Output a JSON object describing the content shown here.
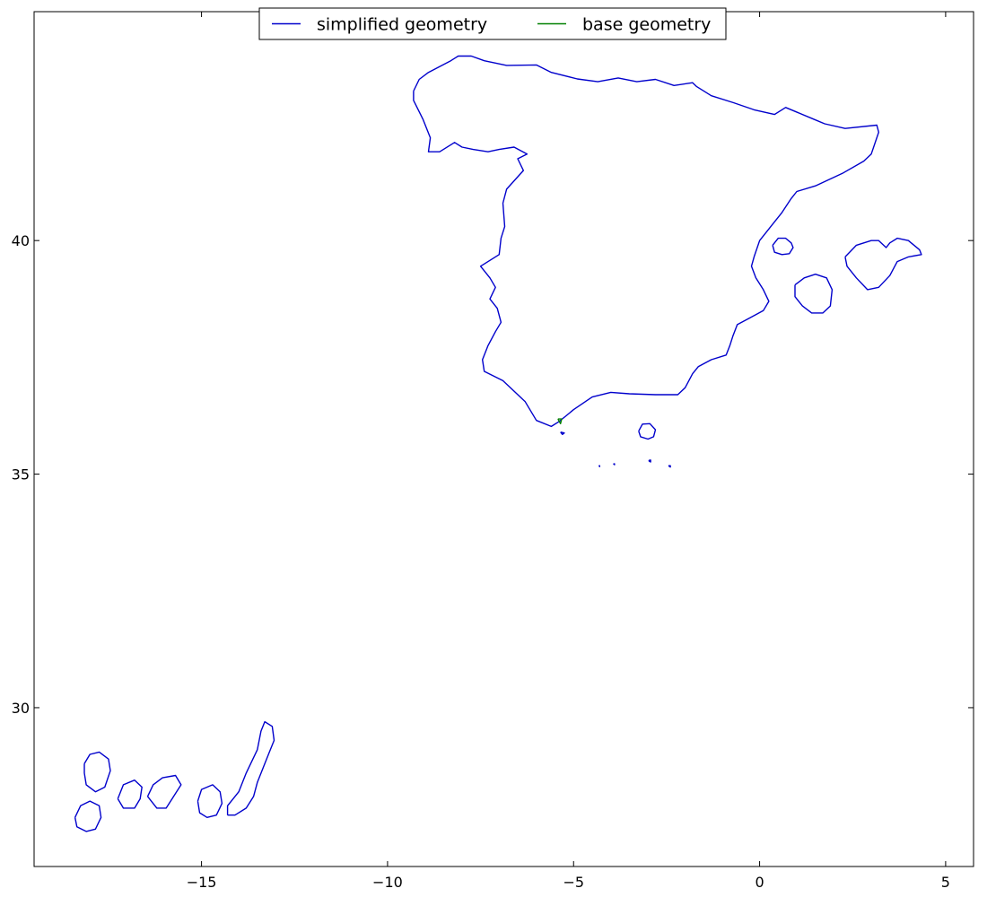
{
  "chart_data": {
    "type": "line",
    "title": "",
    "xlabel": "",
    "ylabel": "",
    "xlim": [
      -19.5,
      5.75
    ],
    "ylim": [
      26.6,
      44.9
    ],
    "x_ticks": [
      -15,
      -10,
      -5,
      0,
      5
    ],
    "x_tick_labels": [
      "−15",
      "−10",
      "−5",
      "0",
      "5"
    ],
    "y_ticks": [
      30,
      35,
      40
    ],
    "y_tick_labels": [
      "30",
      "35",
      "40"
    ],
    "grid": false,
    "legend": {
      "placement": "top-center",
      "entries": [
        {
          "label": "simplified geometry",
          "color": "#0000cc"
        },
        {
          "label": "base geometry",
          "color": "#008000"
        }
      ]
    },
    "series": [
      {
        "name": "simplified geometry",
        "color": "#0000cc",
        "polygons": [
          {
            "part": "mainland",
            "points": [
              [
                -9.3,
                43.2
              ],
              [
                -9.15,
                43.45
              ],
              [
                -8.9,
                43.6
              ],
              [
                -8.3,
                43.85
              ],
              [
                -8.1,
                43.95
              ],
              [
                -7.75,
                43.95
              ],
              [
                -7.4,
                43.85
              ],
              [
                -6.8,
                43.75
              ],
              [
                -6.0,
                43.76
              ],
              [
                -5.6,
                43.6
              ],
              [
                -4.9,
                43.46
              ],
              [
                -4.35,
                43.4
              ],
              [
                -3.8,
                43.48
              ],
              [
                -3.3,
                43.4
              ],
              [
                -2.8,
                43.45
              ],
              [
                -2.3,
                43.32
              ],
              [
                -1.8,
                43.38
              ],
              [
                -1.7,
                43.3
              ],
              [
                -1.3,
                43.1
              ],
              [
                -0.7,
                42.95
              ],
              [
                -0.15,
                42.8
              ],
              [
                0.4,
                42.7
              ],
              [
                0.7,
                42.85
              ],
              [
                1.45,
                42.6
              ],
              [
                1.75,
                42.5
              ],
              [
                2.3,
                42.4
              ],
              [
                3.15,
                42.47
              ],
              [
                3.2,
                42.32
              ],
              [
                3.0,
                41.85
              ],
              [
                2.8,
                41.7
              ],
              [
                2.25,
                41.45
              ],
              [
                1.5,
                41.17
              ],
              [
                1.0,
                41.05
              ],
              [
                0.85,
                40.9
              ],
              [
                0.6,
                40.6
              ],
              [
                0.3,
                40.3
              ],
              [
                0.0,
                40.0
              ],
              [
                -0.15,
                39.65
              ],
              [
                -0.22,
                39.45
              ],
              [
                -0.1,
                39.2
              ],
              [
                0.1,
                38.95
              ],
              [
                0.25,
                38.7
              ],
              [
                0.1,
                38.5
              ],
              [
                -0.25,
                38.35
              ],
              [
                -0.6,
                38.2
              ],
              [
                -0.72,
                37.95
              ],
              [
                -0.8,
                37.75
              ],
              [
                -0.9,
                37.55
              ],
              [
                -1.3,
                37.45
              ],
              [
                -1.65,
                37.3
              ],
              [
                -1.8,
                37.15
              ],
              [
                -2.0,
                36.85
              ],
              [
                -2.2,
                36.7
              ],
              [
                -2.8,
                36.7
              ],
              [
                -3.5,
                36.72
              ],
              [
                -4.0,
                36.75
              ],
              [
                -4.5,
                36.65
              ],
              [
                -5.0,
                36.38
              ],
              [
                -5.2,
                36.25
              ],
              [
                -5.4,
                36.12
              ],
              [
                -5.6,
                36.02
              ],
              [
                -6.0,
                36.15
              ],
              [
                -6.3,
                36.55
              ],
              [
                -6.9,
                37.0
              ],
              [
                -7.4,
                37.2
              ],
              [
                -7.45,
                37.45
              ],
              [
                -7.3,
                37.75
              ],
              [
                -7.1,
                38.05
              ],
              [
                -6.95,
                38.25
              ],
              [
                -7.05,
                38.55
              ],
              [
                -7.25,
                38.75
              ],
              [
                -7.1,
                39.0
              ],
              [
                -7.25,
                39.2
              ],
              [
                -7.5,
                39.45
              ],
              [
                -7.0,
                39.7
              ],
              [
                -6.95,
                40.05
              ],
              [
                -6.85,
                40.3
              ],
              [
                -6.9,
                40.8
              ],
              [
                -6.8,
                41.1
              ],
              [
                -6.35,
                41.5
              ],
              [
                -6.5,
                41.75
              ],
              [
                -6.25,
                41.85
              ],
              [
                -6.6,
                42.0
              ],
              [
                -7.0,
                41.95
              ],
              [
                -7.3,
                41.9
              ],
              [
                -7.7,
                41.95
              ],
              [
                -8.0,
                42.0
              ],
              [
                -8.2,
                42.1
              ],
              [
                -8.6,
                41.9
              ],
              [
                -8.9,
                41.9
              ],
              [
                -8.85,
                42.2
              ],
              [
                -9.05,
                42.6
              ],
              [
                -9.3,
                43.0
              ],
              [
                -9.3,
                43.2
              ]
            ]
          },
          {
            "part": "mallorca",
            "points": [
              [
                2.3,
                39.65
              ],
              [
                2.6,
                39.9
              ],
              [
                3.0,
                40.0
              ],
              [
                3.2,
                40.0
              ],
              [
                3.4,
                39.85
              ],
              [
                3.5,
                39.95
              ],
              [
                3.7,
                40.05
              ],
              [
                4.0,
                40.0
              ],
              [
                4.3,
                39.8
              ],
              [
                4.35,
                39.7
              ],
              [
                4.0,
                39.65
              ],
              [
                3.7,
                39.55
              ],
              [
                3.5,
                39.25
              ],
              [
                3.2,
                39.0
              ],
              [
                2.9,
                38.95
              ],
              [
                2.6,
                39.2
              ],
              [
                2.35,
                39.45
              ],
              [
                2.3,
                39.65
              ]
            ]
          },
          {
            "part": "ibiza",
            "points": [
              [
                0.95,
                39.05
              ],
              [
                1.2,
                39.2
              ],
              [
                1.5,
                39.28
              ],
              [
                1.8,
                39.2
              ],
              [
                1.95,
                38.95
              ],
              [
                1.9,
                38.6
              ],
              [
                1.7,
                38.45
              ],
              [
                1.4,
                38.45
              ],
              [
                1.15,
                38.6
              ],
              [
                0.95,
                38.8
              ],
              [
                0.95,
                39.05
              ]
            ]
          },
          {
            "part": "columbretes",
            "points": [
              [
                0.35,
                39.9
              ],
              [
                0.5,
                40.05
              ],
              [
                0.7,
                40.05
              ],
              [
                0.85,
                39.95
              ],
              [
                0.9,
                39.85
              ],
              [
                0.8,
                39.72
              ],
              [
                0.6,
                39.7
              ],
              [
                0.4,
                39.75
              ],
              [
                0.35,
                39.9
              ]
            ]
          },
          {
            "part": "alboran",
            "points": [
              [
                -3.25,
                35.92
              ],
              [
                -3.15,
                36.07
              ],
              [
                -2.95,
                36.08
              ],
              [
                -2.8,
                35.95
              ],
              [
                -2.85,
                35.8
              ],
              [
                -3.0,
                35.75
              ],
              [
                -3.2,
                35.8
              ],
              [
                -3.25,
                35.92
              ]
            ]
          },
          {
            "part": "tenerife",
            "points": [
              [
                -14.3,
                27.7
              ],
              [
                -14.3,
                27.9
              ],
              [
                -14.0,
                28.2
              ],
              [
                -13.8,
                28.6
              ],
              [
                -13.5,
                29.1
              ],
              [
                -13.4,
                29.5
              ],
              [
                -13.3,
                29.7
              ],
              [
                -13.1,
                29.6
              ],
              [
                -13.05,
                29.3
              ],
              [
                -13.2,
                29.0
              ],
              [
                -13.35,
                28.7
              ],
              [
                -13.5,
                28.4
              ],
              [
                -13.6,
                28.1
              ],
              [
                -13.8,
                27.85
              ],
              [
                -14.1,
                27.7
              ],
              [
                -14.3,
                27.7
              ]
            ]
          },
          {
            "part": "gran-canaria",
            "points": [
              [
                -15.1,
                28.0
              ],
              [
                -15.0,
                28.25
              ],
              [
                -14.7,
                28.35
              ],
              [
                -14.5,
                28.2
              ],
              [
                -14.45,
                27.95
              ],
              [
                -14.6,
                27.7
              ],
              [
                -14.85,
                27.65
              ],
              [
                -15.05,
                27.75
              ],
              [
                -15.1,
                28.0
              ]
            ]
          },
          {
            "part": "la-gomera",
            "points": [
              [
                -16.45,
                28.1
              ],
              [
                -16.3,
                28.35
              ],
              [
                -16.05,
                28.5
              ],
              [
                -15.7,
                28.55
              ],
              [
                -15.55,
                28.35
              ],
              [
                -15.75,
                28.1
              ],
              [
                -15.95,
                27.85
              ],
              [
                -16.2,
                27.85
              ],
              [
                -16.45,
                28.1
              ]
            ]
          },
          {
            "part": "la-palma",
            "points": [
              [
                -17.25,
                28.05
              ],
              [
                -17.1,
                28.35
              ],
              [
                -16.8,
                28.45
              ],
              [
                -16.6,
                28.3
              ],
              [
                -16.65,
                28.05
              ],
              [
                -16.8,
                27.85
              ],
              [
                -17.1,
                27.85
              ],
              [
                -17.25,
                28.05
              ]
            ]
          },
          {
            "part": "hierro",
            "points": [
              [
                -18.15,
                28.8
              ],
              [
                -18.0,
                29.0
              ],
              [
                -17.75,
                29.05
              ],
              [
                -17.5,
                28.9
              ],
              [
                -17.45,
                28.65
              ],
              [
                -17.6,
                28.3
              ],
              [
                -17.85,
                28.2
              ],
              [
                -18.1,
                28.35
              ],
              [
                -18.15,
                28.6
              ],
              [
                -18.15,
                28.8
              ]
            ]
          },
          {
            "part": "island-west",
            "points": [
              [
                -18.4,
                27.65
              ],
              [
                -18.25,
                27.9
              ],
              [
                -18.0,
                28.0
              ],
              [
                -17.75,
                27.9
              ],
              [
                -17.7,
                27.65
              ],
              [
                -17.85,
                27.4
              ],
              [
                -18.1,
                27.35
              ],
              [
                -18.35,
                27.45
              ],
              [
                -18.4,
                27.65
              ]
            ]
          },
          {
            "part": "ceuta",
            "points": [
              [
                -5.35,
                35.9
              ],
              [
                -5.25,
                35.88
              ],
              [
                -5.3,
                35.85
              ],
              [
                -5.35,
                35.9
              ]
            ]
          },
          {
            "part": "melilla",
            "points": [
              [
                -2.97,
                35.3
              ],
              [
                -2.93,
                35.3
              ],
              [
                -2.93,
                35.26
              ],
              [
                -2.97,
                35.28
              ],
              [
                -2.97,
                35.3
              ]
            ]
          },
          {
            "part": "islet-a",
            "points": [
              [
                -4.32,
                35.18
              ],
              [
                -4.3,
                35.18
              ],
              [
                -4.3,
                35.16
              ],
              [
                -4.32,
                35.18
              ]
            ]
          },
          {
            "part": "islet-b",
            "points": [
              [
                -3.93,
                35.22
              ],
              [
                -3.9,
                35.22
              ],
              [
                -3.9,
                35.2
              ],
              [
                -3.93,
                35.22
              ]
            ]
          },
          {
            "part": "islet-c",
            "points": [
              [
                -2.45,
                35.18
              ],
              [
                -2.4,
                35.18
              ],
              [
                -2.4,
                35.15
              ],
              [
                -2.45,
                35.18
              ]
            ]
          }
        ]
      },
      {
        "name": "base geometry",
        "color": "#008000",
        "polygons": [
          {
            "part": "gibraltar",
            "points": [
              [
                -5.42,
                36.18
              ],
              [
                -5.32,
                36.18
              ],
              [
                -5.35,
                36.08
              ],
              [
                -5.42,
                36.18
              ]
            ]
          }
        ]
      }
    ]
  }
}
